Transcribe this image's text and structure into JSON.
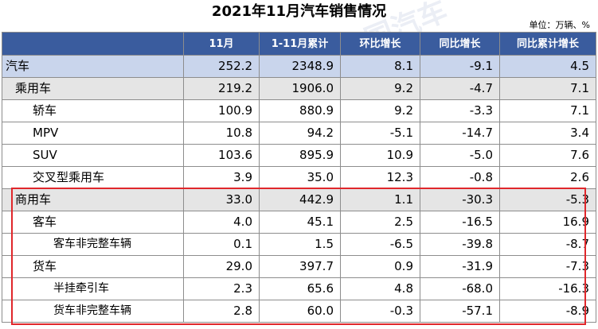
{
  "title": "2021年11月汽车销售情况",
  "unit_label": "单位：万辆、%",
  "columns": [
    "",
    "11月",
    "1-11月累计",
    "环比增长",
    "同比增长",
    "同比累计增长"
  ],
  "rows": [
    {
      "name": "汽车",
      "level": 0,
      "values": [
        "252.2",
        "2348.9",
        "8.1",
        "-9.1",
        "4.5"
      ]
    },
    {
      "name": "乘用车",
      "level": 1,
      "values": [
        "219.2",
        "1906.0",
        "9.2",
        "-4.7",
        "7.1"
      ]
    },
    {
      "name": "轿车",
      "level": 2,
      "values": [
        "100.9",
        "880.9",
        "9.2",
        "-3.3",
        "7.1"
      ]
    },
    {
      "name": "MPV",
      "level": 2,
      "values": [
        "10.8",
        "94.2",
        "-5.1",
        "-14.7",
        "3.4"
      ]
    },
    {
      "name": "SUV",
      "level": 2,
      "values": [
        "103.6",
        "895.9",
        "10.9",
        "-5.0",
        "7.6"
      ]
    },
    {
      "name": "交叉型乘用车",
      "level": 2,
      "values": [
        "3.9",
        "35.0",
        "12.3",
        "-0.8",
        "2.6"
      ]
    },
    {
      "name": "商用车",
      "level": 1,
      "values": [
        "33.0",
        "442.9",
        "1.1",
        "-30.3",
        "-5.3"
      ]
    },
    {
      "name": "客车",
      "level": 2,
      "values": [
        "4.0",
        "45.1",
        "2.5",
        "-16.5",
        "16.9"
      ]
    },
    {
      "name": "客车非完整车辆",
      "level": 3,
      "values": [
        "0.1",
        "1.5",
        "-6.5",
        "-39.8",
        "-8.7"
      ]
    },
    {
      "name": "货车",
      "level": 2,
      "values": [
        "29.0",
        "397.7",
        "0.9",
        "-31.9",
        "-7.3"
      ]
    },
    {
      "name": "半挂牵引车",
      "level": 3,
      "values": [
        "2.3",
        "65.6",
        "4.8",
        "-68.0",
        "-16.3"
      ]
    },
    {
      "name": "货车非完整车辆",
      "level": 3,
      "values": [
        "2.8",
        "60.0",
        "-0.3",
        "-57.1",
        "-8.9"
      ]
    }
  ],
  "watermark_text": "中国汽车工业协会",
  "colors": {
    "header_bg": "#3a5c9e",
    "total_row": "#c9d5ec",
    "sub_row": "#e5e5e5",
    "highlight": "#e0272b"
  }
}
